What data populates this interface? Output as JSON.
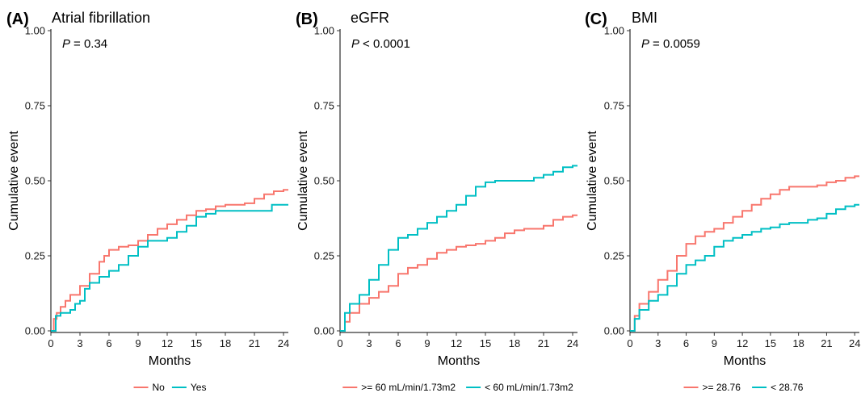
{
  "colors": {
    "series1": "#F8766D",
    "series2": "#00BFC4"
  },
  "chart_data": [
    {
      "type": "line",
      "panel": "(A)",
      "title": "Atrial fibrillation",
      "p_label": "P",
      "p_value": "= 0.34",
      "xlabel": "Months",
      "ylabel": "Cumulative event",
      "xlim": [
        0,
        24.5
      ],
      "ylim": [
        0,
        1
      ],
      "xticks": [
        "0",
        "3",
        "6",
        "9",
        "12",
        "15",
        "18",
        "21",
        "24"
      ],
      "yticks": [
        "0.00",
        "0.25",
        "0.50",
        "0.75",
        "1.00"
      ],
      "legend_position": "bottom",
      "series": [
        {
          "name": "No",
          "points": [
            [
              0,
              0
            ],
            [
              0.3,
              0.04
            ],
            [
              0.6,
              0.06
            ],
            [
              1,
              0.08
            ],
            [
              1.5,
              0.1
            ],
            [
              2,
              0.12
            ],
            [
              3,
              0.15
            ],
            [
              4,
              0.19
            ],
            [
              5,
              0.23
            ],
            [
              5.5,
              0.25
            ],
            [
              6,
              0.27
            ],
            [
              7,
              0.28
            ],
            [
              8,
              0.285
            ],
            [
              9,
              0.3
            ],
            [
              10,
              0.32
            ],
            [
              11,
              0.34
            ],
            [
              12,
              0.355
            ],
            [
              13,
              0.37
            ],
            [
              14,
              0.385
            ],
            [
              15,
              0.4
            ],
            [
              16,
              0.405
            ],
            [
              17,
              0.415
            ],
            [
              18,
              0.42
            ],
            [
              19,
              0.42
            ],
            [
              20,
              0.425
            ],
            [
              21,
              0.44
            ],
            [
              22,
              0.455
            ],
            [
              23,
              0.465
            ],
            [
              24,
              0.47
            ],
            [
              24.5,
              0.47
            ]
          ]
        },
        {
          "name": "Yes",
          "points": [
            [
              0,
              0
            ],
            [
              0.5,
              0.05
            ],
            [
              1,
              0.06
            ],
            [
              2,
              0.07
            ],
            [
              2.5,
              0.09
            ],
            [
              3,
              0.1
            ],
            [
              3.5,
              0.14
            ],
            [
              4,
              0.16
            ],
            [
              5,
              0.18
            ],
            [
              6,
              0.2
            ],
            [
              7,
              0.22
            ],
            [
              8,
              0.25
            ],
            [
              9,
              0.28
            ],
            [
              10,
              0.3
            ],
            [
              11,
              0.3
            ],
            [
              12,
              0.31
            ],
            [
              13,
              0.33
            ],
            [
              14,
              0.35
            ],
            [
              15,
              0.38
            ],
            [
              16,
              0.39
            ],
            [
              17,
              0.4
            ],
            [
              18,
              0.4
            ],
            [
              20,
              0.4
            ],
            [
              21,
              0.4
            ],
            [
              22,
              0.4
            ],
            [
              22.8,
              0.42
            ],
            [
              24.5,
              0.42
            ]
          ]
        }
      ]
    },
    {
      "type": "line",
      "panel": "(B)",
      "title": "eGFR",
      "p_label": "P",
      "p_value": "< 0.0001",
      "xlabel": "Months",
      "ylabel": "Cumulative event",
      "xlim": [
        0,
        24.5
      ],
      "ylim": [
        0,
        1
      ],
      "xticks": [
        "0",
        "3",
        "6",
        "9",
        "12",
        "15",
        "18",
        "21",
        "24"
      ],
      "yticks": [
        "0.00",
        "0.25",
        "0.50",
        "0.75",
        "1.00"
      ],
      "legend_position": "bottom",
      "series": [
        {
          "name": ">= 60 mL/min/1.73m2",
          "points": [
            [
              0,
              0
            ],
            [
              0.5,
              0.03
            ],
            [
              1,
              0.06
            ],
            [
              2,
              0.09
            ],
            [
              3,
              0.11
            ],
            [
              4,
              0.13
            ],
            [
              5,
              0.15
            ],
            [
              6,
              0.19
            ],
            [
              7,
              0.21
            ],
            [
              8,
              0.22
            ],
            [
              9,
              0.24
            ],
            [
              10,
              0.26
            ],
            [
              11,
              0.27
            ],
            [
              12,
              0.28
            ],
            [
              13,
              0.285
            ],
            [
              14,
              0.29
            ],
            [
              15,
              0.3
            ],
            [
              16,
              0.31
            ],
            [
              17,
              0.325
            ],
            [
              18,
              0.335
            ],
            [
              19,
              0.34
            ],
            [
              20,
              0.34
            ],
            [
              21,
              0.35
            ],
            [
              22,
              0.37
            ],
            [
              23,
              0.38
            ],
            [
              24,
              0.385
            ],
            [
              24.5,
              0.385
            ]
          ]
        },
        {
          "name": "< 60 mL/min/1.73m2",
          "points": [
            [
              0,
              0
            ],
            [
              0.5,
              0.06
            ],
            [
              1,
              0.09
            ],
            [
              2,
              0.12
            ],
            [
              3,
              0.17
            ],
            [
              4,
              0.22
            ],
            [
              5,
              0.27
            ],
            [
              6,
              0.31
            ],
            [
              7,
              0.32
            ],
            [
              8,
              0.34
            ],
            [
              9,
              0.36
            ],
            [
              10,
              0.38
            ],
            [
              11,
              0.4
            ],
            [
              12,
              0.42
            ],
            [
              13,
              0.45
            ],
            [
              14,
              0.48
            ],
            [
              15,
              0.495
            ],
            [
              16,
              0.5
            ],
            [
              17,
              0.5
            ],
            [
              18,
              0.5
            ],
            [
              19,
              0.5
            ],
            [
              20,
              0.51
            ],
            [
              21,
              0.52
            ],
            [
              22,
              0.53
            ],
            [
              23,
              0.545
            ],
            [
              24,
              0.55
            ],
            [
              24.5,
              0.55
            ]
          ]
        }
      ]
    },
    {
      "type": "line",
      "panel": "(C)",
      "title": "BMI",
      "p_label": "P",
      "p_value": "= 0.0059",
      "xlabel": "Months",
      "ylabel": "Cumulative event",
      "xlim": [
        0,
        24.5
      ],
      "ylim": [
        0,
        1
      ],
      "xticks": [
        "0",
        "3",
        "6",
        "9",
        "12",
        "15",
        "18",
        "21",
        "24"
      ],
      "yticks": [
        "0.00",
        "0.25",
        "0.50",
        "0.75",
        "1.00"
      ],
      "legend_position": "bottom",
      "series": [
        {
          "name": ">= 28.76",
          "points": [
            [
              0,
              0
            ],
            [
              0.5,
              0.05
            ],
            [
              1,
              0.09
            ],
            [
              2,
              0.13
            ],
            [
              3,
              0.17
            ],
            [
              4,
              0.2
            ],
            [
              5,
              0.25
            ],
            [
              6,
              0.29
            ],
            [
              7,
              0.315
            ],
            [
              8,
              0.33
            ],
            [
              9,
              0.34
            ],
            [
              10,
              0.36
            ],
            [
              11,
              0.38
            ],
            [
              12,
              0.4
            ],
            [
              13,
              0.42
            ],
            [
              14,
              0.44
            ],
            [
              15,
              0.455
            ],
            [
              16,
              0.47
            ],
            [
              17,
              0.48
            ],
            [
              18,
              0.48
            ],
            [
              19,
              0.48
            ],
            [
              20,
              0.485
            ],
            [
              21,
              0.495
            ],
            [
              22,
              0.5
            ],
            [
              23,
              0.51
            ],
            [
              24,
              0.515
            ],
            [
              24.5,
              0.515
            ]
          ]
        },
        {
          "name": "< 28.76",
          "points": [
            [
              0,
              0
            ],
            [
              0.5,
              0.04
            ],
            [
              1,
              0.07
            ],
            [
              2,
              0.1
            ],
            [
              3,
              0.12
            ],
            [
              4,
              0.15
            ],
            [
              5,
              0.19
            ],
            [
              6,
              0.22
            ],
            [
              7,
              0.235
            ],
            [
              8,
              0.25
            ],
            [
              9,
              0.28
            ],
            [
              10,
              0.3
            ],
            [
              11,
              0.31
            ],
            [
              12,
              0.32
            ],
            [
              13,
              0.33
            ],
            [
              14,
              0.34
            ],
            [
              15,
              0.345
            ],
            [
              16,
              0.355
            ],
            [
              17,
              0.36
            ],
            [
              18,
              0.36
            ],
            [
              19,
              0.37
            ],
            [
              20,
              0.375
            ],
            [
              21,
              0.39
            ],
            [
              22,
              0.405
            ],
            [
              23,
              0.415
            ],
            [
              24,
              0.42
            ],
            [
              24.5,
              0.42
            ]
          ]
        }
      ]
    }
  ]
}
